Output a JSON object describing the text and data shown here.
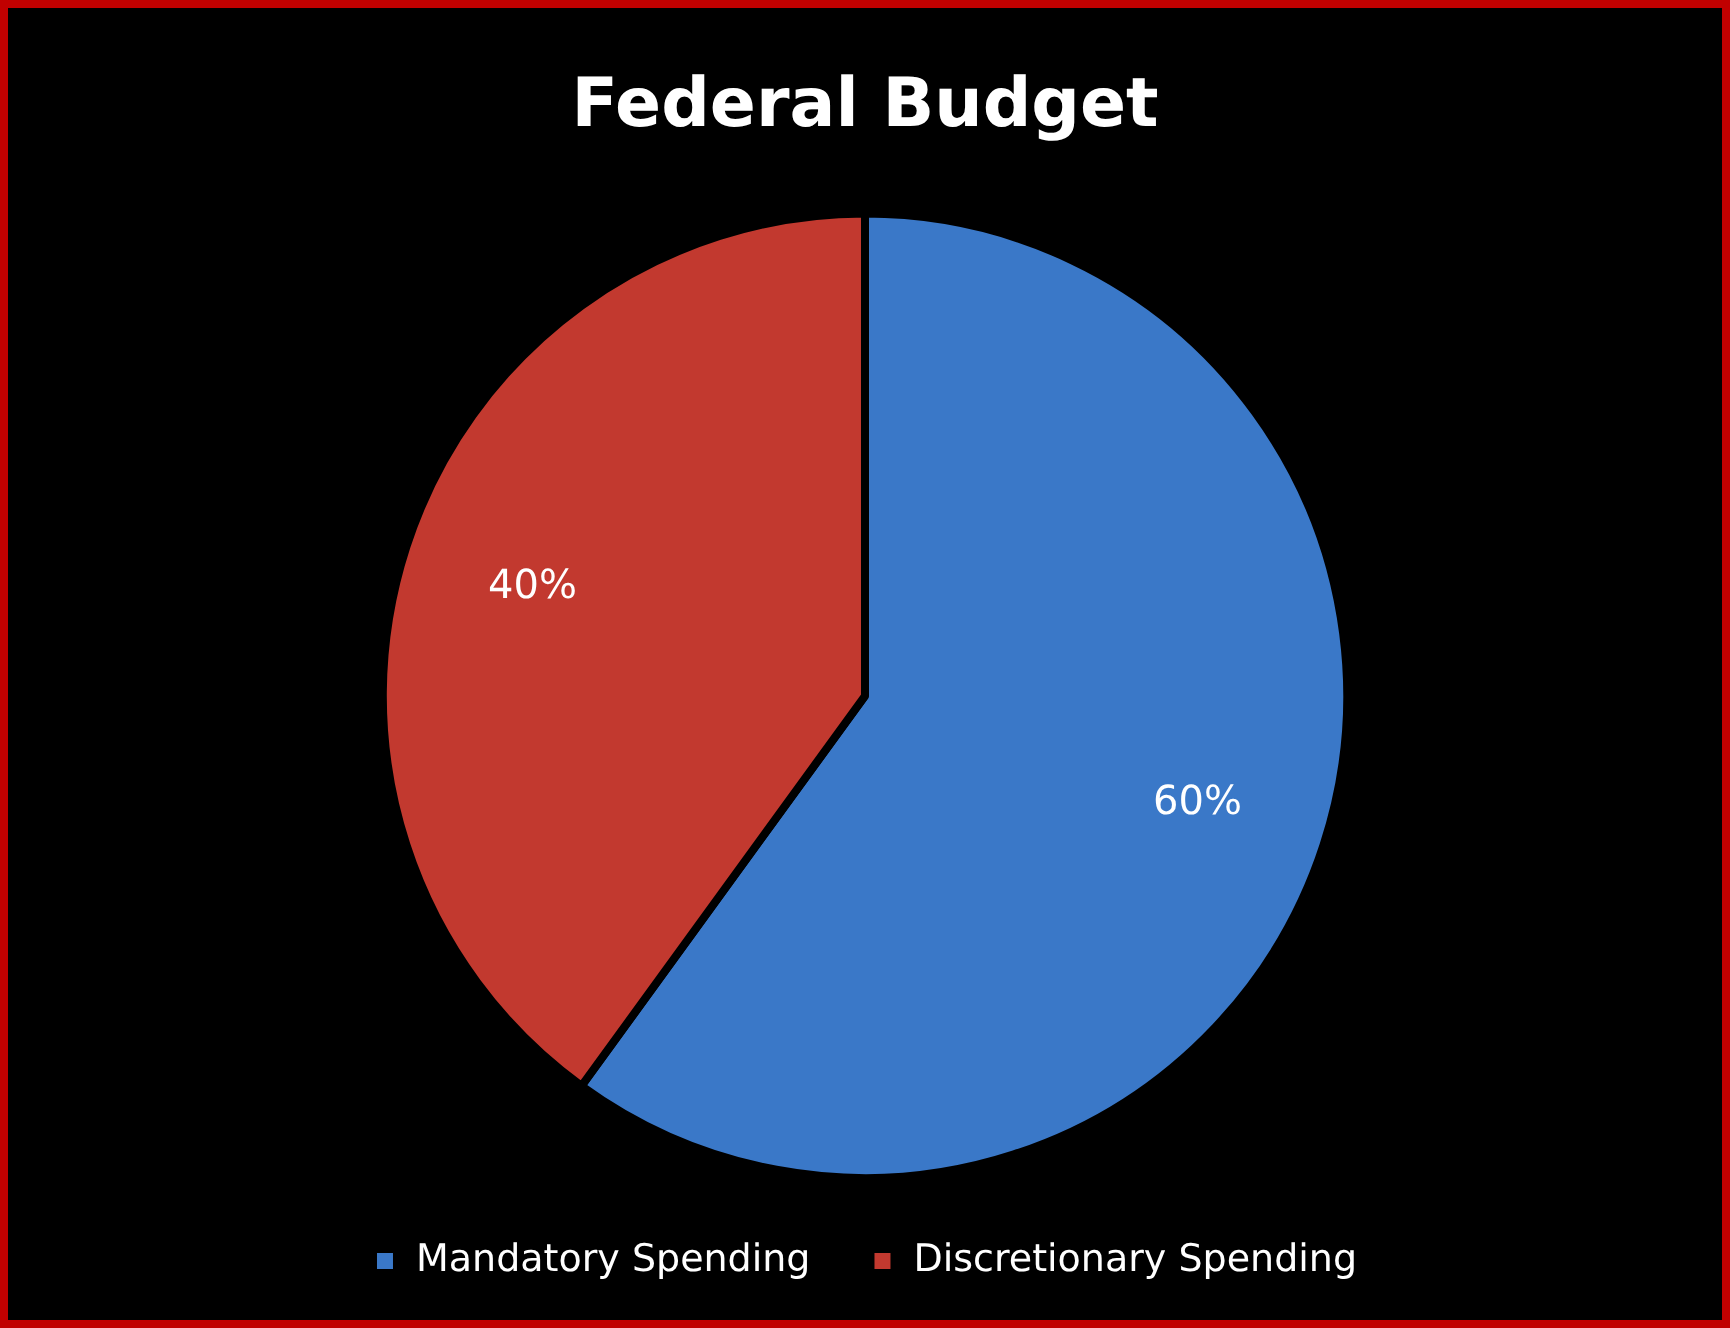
{
  "chart_data": {
    "type": "pie",
    "title": "Federal Budget",
    "categories": [
      "Mandatory Spending",
      "Discretionary Spending"
    ],
    "values": [
      60,
      40
    ],
    "colors": [
      "#3a78c8",
      "#c2392f"
    ],
    "value_labels": [
      "60%",
      "40%"
    ],
    "legend": "bottom"
  }
}
